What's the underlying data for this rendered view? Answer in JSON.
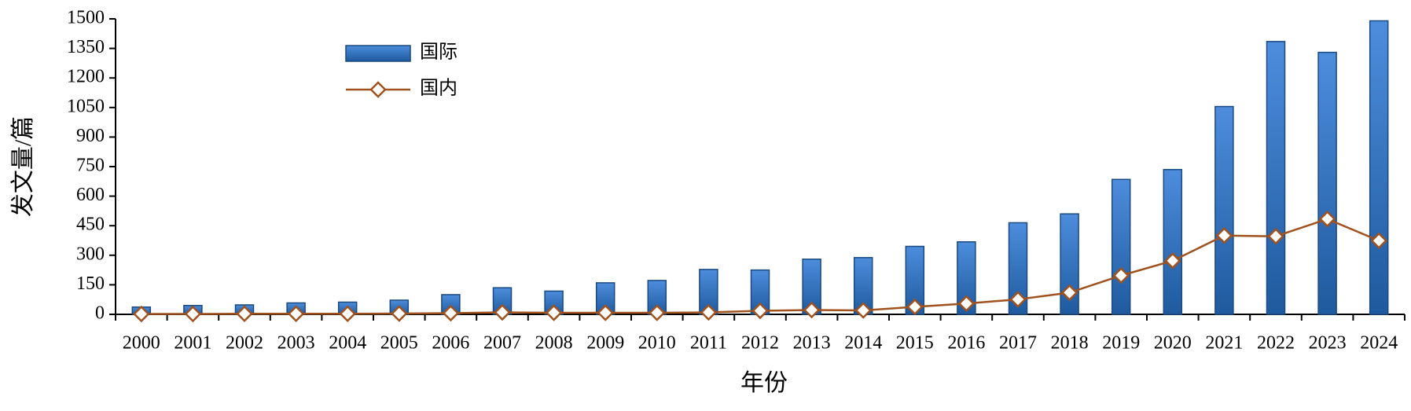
{
  "chart_data": {
    "type": "bar-line",
    "xlabel": "年份",
    "ylabel": "发文量/篇",
    "categories": [
      "2000",
      "2001",
      "2002",
      "2003",
      "2004",
      "2005",
      "2006",
      "2007",
      "2008",
      "2009",
      "2010",
      "2011",
      "2012",
      "2013",
      "2014",
      "2015",
      "2016",
      "2017",
      "2018",
      "2019",
      "2020",
      "2021",
      "2022",
      "2023",
      "2024"
    ],
    "series": [
      {
        "name": "国际",
        "type": "bar",
        "color": "#3a78c8",
        "values": [
          37,
          45,
          48,
          58,
          62,
          72,
          100,
          135,
          118,
          160,
          172,
          228,
          225,
          280,
          288,
          345,
          368,
          465,
          510,
          685,
          735,
          1055,
          1385,
          1330,
          1490
        ]
      },
      {
        "name": "国内",
        "type": "line",
        "color": "#a0521e",
        "values": [
          2,
          2,
          3,
          3,
          3,
          4,
          6,
          10,
          8,
          8,
          8,
          10,
          18,
          22,
          20,
          38,
          55,
          76,
          110,
          197,
          272,
          400,
          396,
          484,
          374
        ]
      }
    ],
    "ylim": [
      0,
      1500
    ],
    "yticks": [
      0,
      150,
      300,
      450,
      600,
      750,
      900,
      1050,
      1200,
      1350,
      1500
    ],
    "grid": false,
    "legend": "top-left"
  }
}
